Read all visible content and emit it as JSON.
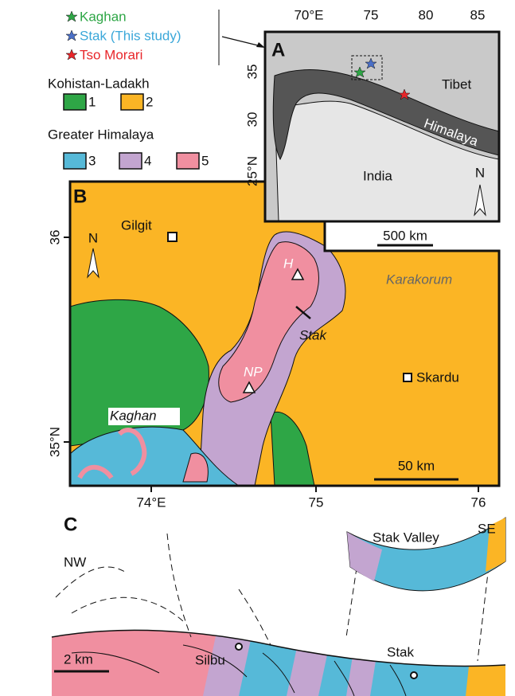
{
  "legend": {
    "stars": [
      "Kaghan",
      "Stak (This study)",
      "Tso Morari"
    ],
    "groups": [
      {
        "title": "Kohistan-Ladakh",
        "units": [
          "1",
          "2"
        ]
      },
      {
        "title": "Greater Himalaya",
        "units": [
          "3",
          "4",
          "5"
        ]
      }
    ]
  },
  "panel_a": {
    "label": "A",
    "top_ticks": [
      "70°E",
      "75",
      "80",
      "85"
    ],
    "left_ticks": [
      "35",
      "30",
      "25°N"
    ],
    "tibet": "Tibet",
    "india": "India",
    "himalaya": "Himalaya",
    "north": "N",
    "scale": "500 km"
  },
  "panel_b": {
    "label": "B",
    "gilgit": "Gilgit",
    "skardu": "Skardu",
    "h": "H",
    "np": "NP",
    "stak": "Stak",
    "karakorum": "Karakorum",
    "kaghan": "Kaghan",
    "north": "N",
    "left_ticks": [
      "36",
      "35°N"
    ],
    "bottom_ticks": [
      "74°E",
      "75",
      "76"
    ],
    "scale": "50 km"
  },
  "panel_c": {
    "label": "C",
    "nw": "NW",
    "se": "SE",
    "inset": "Stak Valley",
    "scale": "2 km",
    "silbu": "Silbu",
    "stak": "Stak"
  }
}
